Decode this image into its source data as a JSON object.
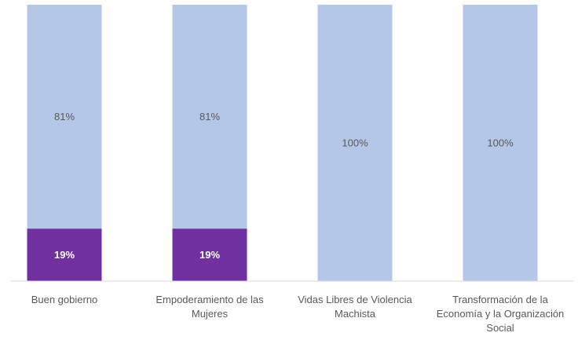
{
  "chart_data": {
    "type": "bar",
    "stacked": true,
    "percent": true,
    "categories": [
      [
        "Buen gobierno"
      ],
      [
        "Empoderamiento de las",
        "Mujeres"
      ],
      [
        "Vidas Libres de Violencia",
        "Machista"
      ],
      [
        "Transformación de la",
        "Economía y la Organización",
        "Social"
      ]
    ],
    "series": [
      {
        "color": "#7030A0",
        "values": [
          19,
          19,
          0,
          0
        ],
        "labels": [
          "19%",
          "19%",
          "",
          ""
        ]
      },
      {
        "color": "#B4C7E7",
        "values": [
          81,
          81,
          100,
          100
        ],
        "labels": [
          "81%",
          "81%",
          "100%",
          "100%"
        ]
      }
    ],
    "ylim": [
      0,
      100
    ],
    "grid": false,
    "legend": "none"
  }
}
